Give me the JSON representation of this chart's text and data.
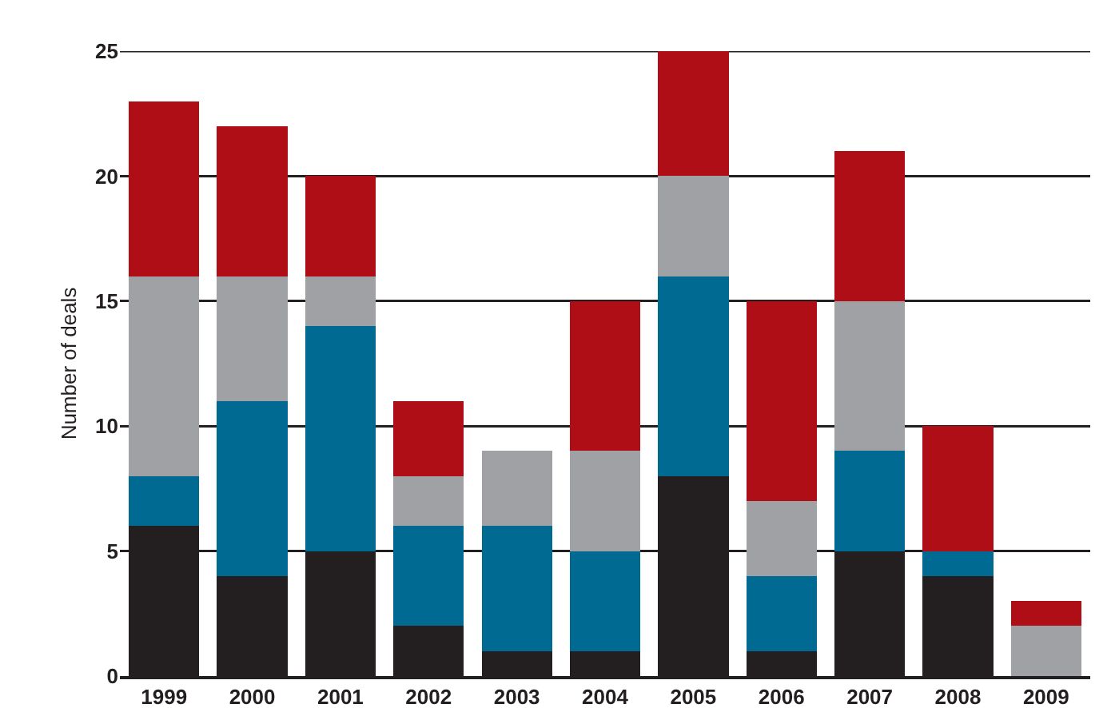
{
  "chart_data": {
    "type": "bar",
    "stacked": true,
    "ylabel": "Number of deals",
    "categories": [
      "1999",
      "2000",
      "2001",
      "2002",
      "2003",
      "2004",
      "2005",
      "2006",
      "2007",
      "2008",
      "2009"
    ],
    "series": [
      {
        "color": "#231f20",
        "values": [
          6,
          4,
          5,
          2,
          1,
          1,
          8,
          1,
          5,
          4,
          0
        ]
      },
      {
        "color": "#006a93",
        "values": [
          2,
          7,
          9,
          4,
          5,
          4,
          8,
          3,
          4,
          1,
          0
        ]
      },
      {
        "color": "#a0a1a5",
        "values": [
          8,
          5,
          2,
          2,
          3,
          4,
          4,
          3,
          6,
          0,
          2
        ]
      },
      {
        "color": "#b00e17",
        "values": [
          7,
          6,
          4,
          3,
          0,
          6,
          5,
          8,
          6,
          5,
          1
        ]
      }
    ],
    "ylim": [
      0,
      25
    ],
    "yticks": [
      0,
      5,
      10,
      15,
      20,
      25
    ],
    "grid": "y"
  }
}
